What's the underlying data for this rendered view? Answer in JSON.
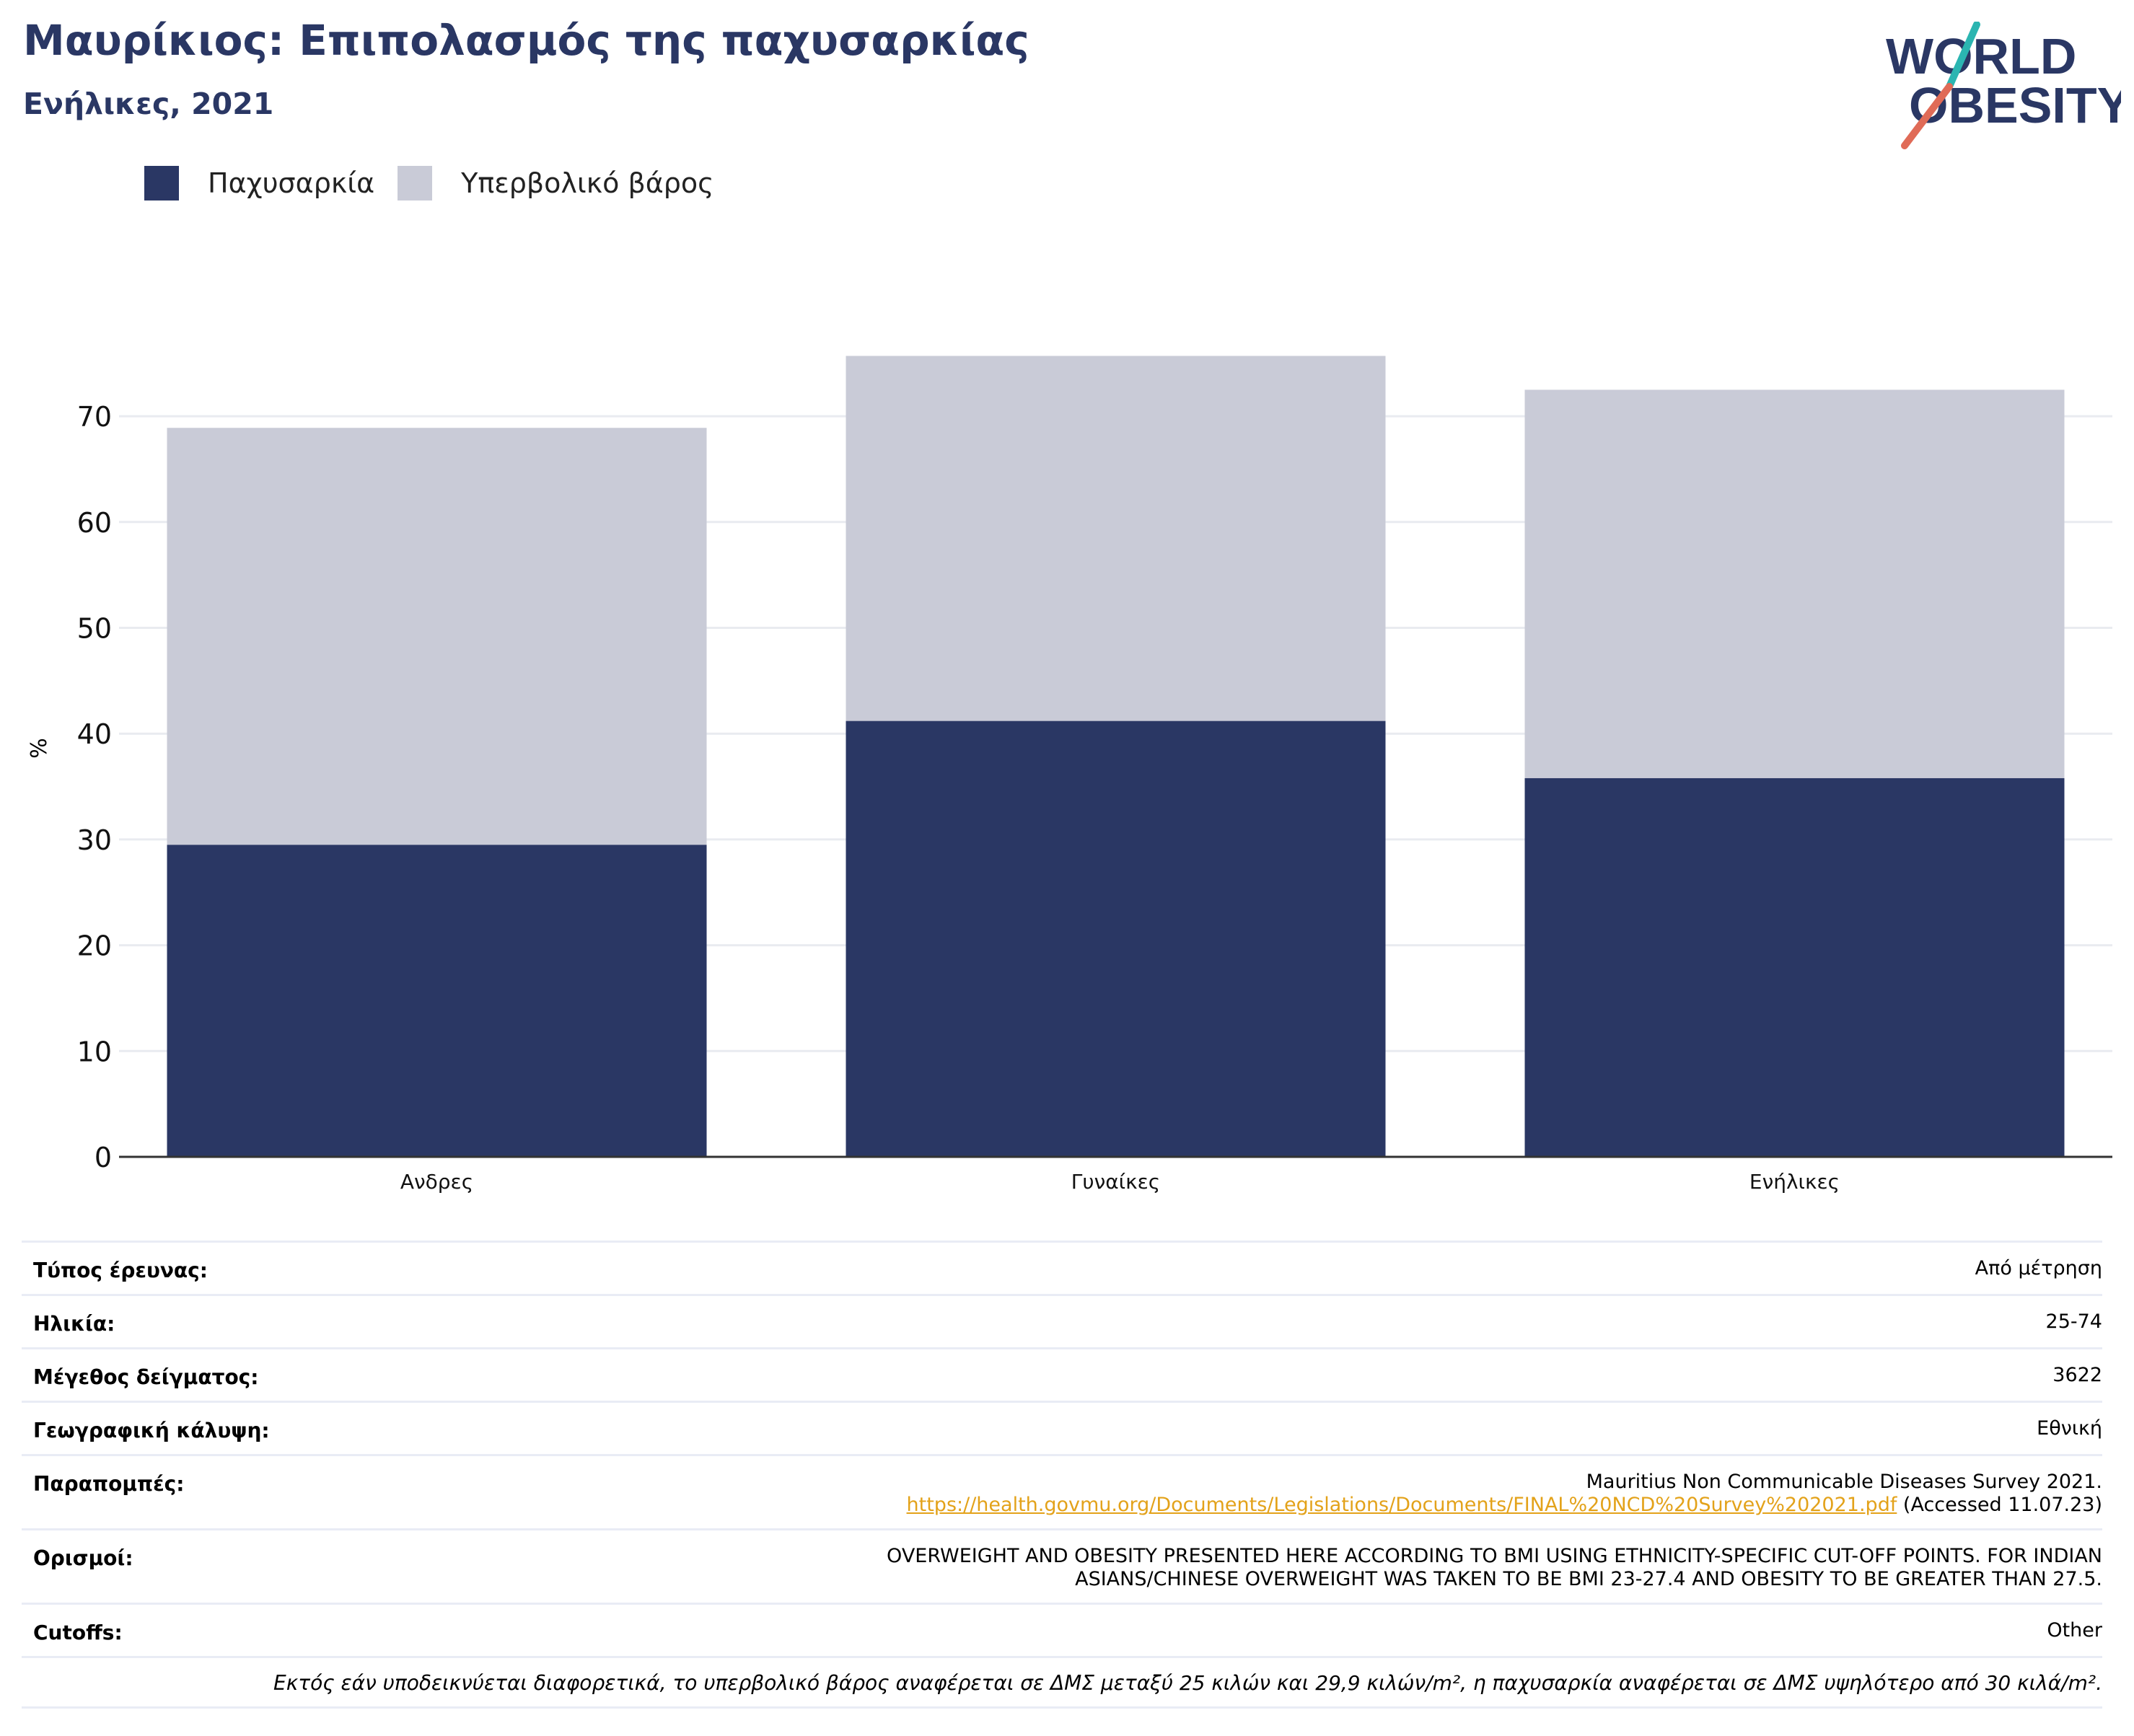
{
  "header": {
    "title": "Μαυρίκιος: Επιπολασμός της παχυσαρκίας",
    "subtitle": "Ενήλικες, 2021"
  },
  "logo": {
    "line1": "WORLD",
    "line2": "OBESITY",
    "accent_colors": [
      "#2bb5b1",
      "#e06b57"
    ]
  },
  "legend": [
    {
      "label": "Παχυσαρκία",
      "color": "#2a3764"
    },
    {
      "label": "Υπερβολικό βάρος",
      "color": "#c9cbd7"
    }
  ],
  "chart_data": {
    "type": "bar",
    "stacked": true,
    "categories": [
      "Ανδρες",
      "Γυναίκες",
      "Ενήλικες"
    ],
    "series": [
      {
        "name": "Παχυσαρκία",
        "values": [
          29.5,
          41.2,
          35.8
        ],
        "color": "#2a3764"
      },
      {
        "name": "Υπερβολικό βάρος",
        "values": [
          39.4,
          34.5,
          36.7
        ],
        "color": "#c9cbd7"
      }
    ],
    "ylabel": "%",
    "xlabel": "",
    "ylim": [
      0,
      76
    ],
    "yticks": [
      0,
      10,
      20,
      30,
      40,
      50,
      60,
      70
    ],
    "grid": true,
    "legend_position": "top-left"
  },
  "info": {
    "survey_type": {
      "label": "Τύπος έρευνας:",
      "value": "Από μέτρηση"
    },
    "age": {
      "label": "Ηλικία:",
      "value": "25-74"
    },
    "sample_size": {
      "label": "Μέγεθος δείγματος:",
      "value": "3622"
    },
    "coverage": {
      "label": "Γεωγραφική κάλυψη:",
      "value": "Εθνική"
    },
    "references": {
      "label": "Παραπομπές:",
      "line1": "Mauritius Non Communicable Diseases Survey 2021.",
      "link": "https://health.govmu.org/Documents/Legislations/Documents/FINAL%20NCD%20Survey%202021.pdf",
      "accessed": " (Accessed 11.07.23)"
    },
    "definitions": {
      "label": "Ορισμοί:",
      "line1": "OVERWEIGHT AND OBESITY PRESENTED HERE ACCORDING TO BMI USING ETHNICITY-SPECIFIC CUT-OFF POINTS. FOR INDIAN",
      "line2": "ASIANS/CHINESE OVERWEIGHT WAS TAKEN TO BE BMI 23-27.4 AND OBESITY TO BE GREATER THAN 27.5."
    },
    "cutoffs": {
      "label": "Cutoffs:",
      "value": "Other"
    },
    "footnote": "Εκτός εάν υποδεικνύεται διαφορετικά, το υπερβολικό βάρος αναφέρεται σε ΔΜΣ μεταξύ 25 κιλών και 29,9 κιλών/m², η παχυσαρκία αναφέρεται σε ΔΜΣ υψηλότερο από 30 κιλά/m²."
  }
}
